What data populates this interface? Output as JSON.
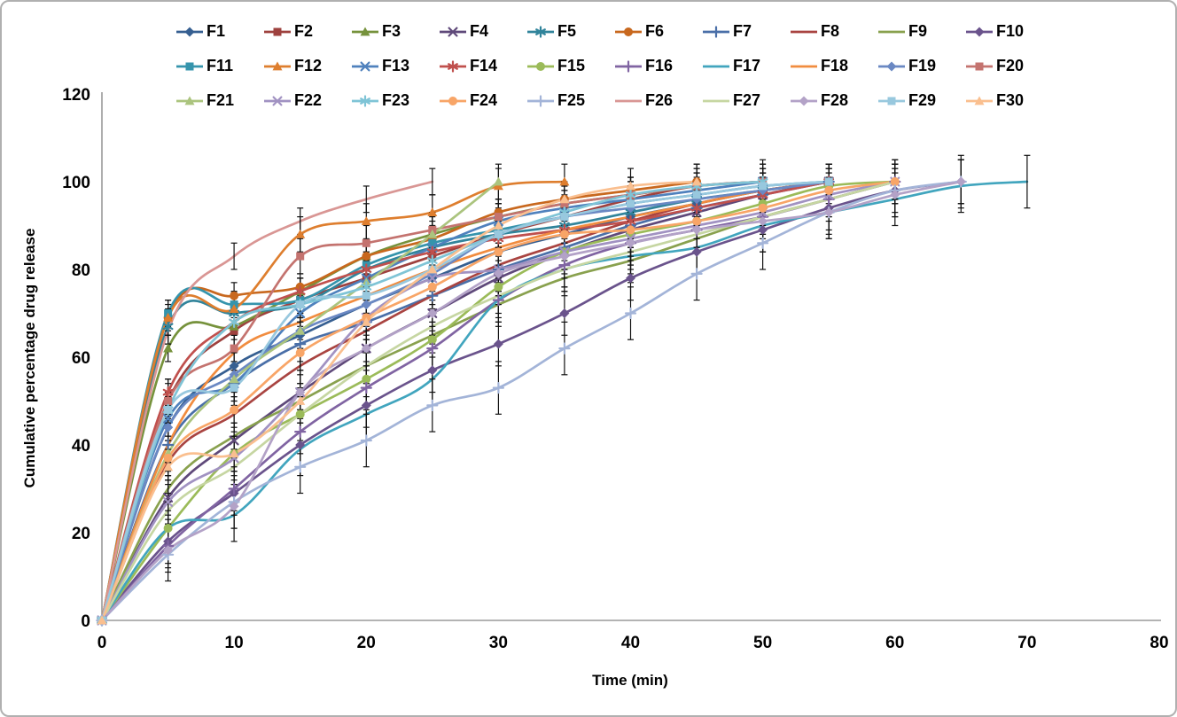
{
  "frame": {
    "background": "#ffffff",
    "border_color": "#b0b0b0",
    "axis_color": "#9a9a9a",
    "error_bar_color": "#111111"
  },
  "chart_data": {
    "type": "line",
    "title": "",
    "xlabel": "Time (min)",
    "ylabel": "Cumulative percentage drug release",
    "xlim": [
      0,
      80
    ],
    "ylim": [
      0,
      120
    ],
    "x_ticks": [
      0,
      10,
      20,
      30,
      40,
      50,
      60,
      70,
      80
    ],
    "y_ticks": [
      0,
      20,
      40,
      60,
      80,
      100,
      120
    ],
    "grid": false,
    "legend_position": "top",
    "error_bars": true,
    "x_start": 0,
    "x_step": 5,
    "series": [
      {
        "name": "F1",
        "color": "#365F91",
        "marker": "diamond",
        "err": 4,
        "values": [
          0,
          44,
          58,
          65,
          72,
          78,
          84,
          88,
          92,
          95,
          98,
          100
        ]
      },
      {
        "name": "F2",
        "color": "#9E413E",
        "marker": "square",
        "err": 5,
        "values": [
          0,
          50,
          66,
          73,
          78,
          83,
          88,
          92,
          96,
          99,
          100
        ]
      },
      {
        "name": "F3",
        "color": "#76923C",
        "marker": "triangle",
        "err": 3,
        "values": [
          0,
          62,
          67,
          75,
          83,
          88,
          92,
          95,
          97,
          99,
          100
        ]
      },
      {
        "name": "F4",
        "color": "#5F497A",
        "marker": "x",
        "err": 4,
        "values": [
          0,
          28,
          41,
          52,
          62,
          70,
          78,
          84,
          89,
          93,
          97,
          100
        ]
      },
      {
        "name": "F5",
        "color": "#31849B",
        "marker": "asterisk",
        "err": 4,
        "values": [
          0,
          67,
          70,
          72,
          80,
          85,
          88,
          90,
          93,
          96,
          98,
          100
        ]
      },
      {
        "name": "F6",
        "color": "#C8681E",
        "marker": "circle",
        "err": 3,
        "values": [
          0,
          69,
          74,
          76,
          83,
          87,
          93,
          96,
          98,
          100
        ]
      },
      {
        "name": "F7",
        "color": "#4A6FA8",
        "marker": "plus",
        "err": 4,
        "values": [
          0,
          40,
          54,
          63,
          68,
          74,
          80,
          85,
          90,
          94,
          97,
          100
        ]
      },
      {
        "name": "F8",
        "color": "#A94441",
        "marker": "none",
        "err": 4,
        "values": [
          0,
          36,
          47,
          58,
          66,
          74,
          81,
          86,
          91,
          95,
          98,
          100
        ]
      },
      {
        "name": "F9",
        "color": "#89A14E",
        "marker": "none",
        "err": 3,
        "values": [
          0,
          30,
          42,
          50,
          58,
          65,
          72,
          78,
          82,
          87,
          92,
          96,
          100
        ]
      },
      {
        "name": "F10",
        "color": "#6A538C",
        "marker": "diamond",
        "err": 5,
        "values": [
          0,
          18,
          29,
          40,
          49,
          57,
          63,
          70,
          78,
          84,
          89,
          94,
          98,
          100
        ]
      },
      {
        "name": "F11",
        "color": "#3594AC",
        "marker": "square",
        "err": 3,
        "values": [
          0,
          70,
          72,
          73,
          81,
          86,
          89,
          92,
          95,
          97,
          99,
          100
        ]
      },
      {
        "name": "F12",
        "color": "#DE7E2E",
        "marker": "triangle",
        "err": 4,
        "values": [
          0,
          69,
          71,
          88,
          91,
          93,
          99,
          100
        ]
      },
      {
        "name": "F13",
        "color": "#4F81BD",
        "marker": "x",
        "err": 4,
        "values": [
          0,
          46,
          54,
          70,
          78,
          85,
          91,
          94,
          96,
          98,
          100
        ]
      },
      {
        "name": "F14",
        "color": "#C0504D",
        "marker": "asterisk",
        "err": 3,
        "values": [
          0,
          52,
          68,
          75,
          80,
          84,
          87,
          89,
          91,
          94,
          97,
          100
        ]
      },
      {
        "name": "F15",
        "color": "#9BBB59",
        "marker": "circle",
        "err": 4,
        "values": [
          0,
          21,
          38,
          47,
          55,
          64,
          76,
          84,
          88,
          91,
          95,
          99,
          100
        ]
      },
      {
        "name": "F16",
        "color": "#8064A2",
        "marker": "plus",
        "err": 5,
        "values": [
          0,
          17,
          30,
          43,
          53,
          62,
          73,
          81,
          86,
          89,
          92,
          96,
          100
        ]
      },
      {
        "name": "F17",
        "color": "#41A5BE",
        "marker": "none",
        "err": 6,
        "values": [
          0,
          21,
          24,
          39,
          47,
          55,
          73,
          80,
          83,
          85,
          90,
          93,
          96,
          99,
          100
        ]
      },
      {
        "name": "F18",
        "color": "#F18C3F",
        "marker": "none",
        "err": 4,
        "values": [
          0,
          40,
          61,
          68,
          74,
          80,
          85,
          89,
          92,
          95,
          98,
          100
        ]
      },
      {
        "name": "F19",
        "color": "#6A88C3",
        "marker": "diamond",
        "err": 3,
        "values": [
          0,
          44,
          56,
          66,
          72,
          79,
          88,
          92,
          94,
          96,
          98,
          100
        ]
      },
      {
        "name": "F20",
        "color": "#C4736F",
        "marker": "square",
        "err": 4,
        "values": [
          0,
          50,
          62,
          83,
          86,
          89,
          92,
          95,
          97,
          99,
          100
        ]
      },
      {
        "name": "F21",
        "color": "#ABC47E",
        "marker": "triangle",
        "err": 4,
        "values": [
          0,
          38,
          55,
          66,
          77,
          88,
          100
        ]
      },
      {
        "name": "F22",
        "color": "#A192C2",
        "marker": "x",
        "err": 5,
        "values": [
          0,
          27,
          37,
          52,
          69,
          78,
          80,
          84,
          87,
          90,
          93,
          97,
          100
        ]
      },
      {
        "name": "F23",
        "color": "#7FC4D6",
        "marker": "asterisk",
        "err": 3,
        "values": [
          0,
          48,
          68,
          72,
          76,
          82,
          88,
          93,
          97,
          99,
          100
        ]
      },
      {
        "name": "F24",
        "color": "#F8A567",
        "marker": "circle",
        "err": 4,
        "values": [
          0,
          37,
          48,
          61,
          69,
          76,
          84,
          88,
          89,
          91,
          94,
          98,
          100
        ]
      },
      {
        "name": "F25",
        "color": "#A3B4D8",
        "marker": "plus",
        "err": 6,
        "values": [
          0,
          15,
          27,
          35,
          41,
          49,
          53,
          62,
          70,
          79,
          86,
          93,
          98,
          100
        ]
      },
      {
        "name": "F26",
        "color": "#D99694",
        "marker": "none",
        "err": 3,
        "values": [
          0,
          66,
          83,
          91,
          96,
          100
        ]
      },
      {
        "name": "F27",
        "color": "#C6D6A2",
        "marker": "none",
        "err": 4,
        "values": [
          0,
          25,
          35,
          47,
          58,
          67,
          74,
          80,
          84,
          88,
          92,
          96,
          100
        ]
      },
      {
        "name": "F28",
        "color": "#B3A2C7",
        "marker": "diamond",
        "err": 5,
        "values": [
          0,
          16,
          26,
          52,
          62,
          70,
          79,
          83,
          86,
          89,
          91,
          93,
          97,
          100
        ]
      },
      {
        "name": "F29",
        "color": "#98C8DE",
        "marker": "square",
        "err": 4,
        "values": [
          0,
          48,
          53,
          72,
          74,
          80,
          88,
          92,
          95,
          97,
          99,
          100
        ]
      },
      {
        "name": "F30",
        "color": "#FABF8F",
        "marker": "triangle",
        "err": 4,
        "values": [
          0,
          35,
          38,
          50,
          68,
          80,
          90,
          96,
          99,
          100
        ]
      }
    ]
  }
}
